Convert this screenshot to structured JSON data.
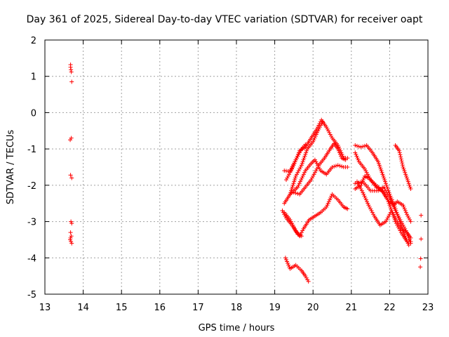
{
  "chart_data": {
    "type": "scatter",
    "title": "Day 361 of 2025, Sidereal Day-to-day VTEC variation (SDTVAR) for receiver oapt",
    "xlabel": "GPS time / hours",
    "ylabel": "SDTVAR / TECUs",
    "xlim": [
      13,
      23
    ],
    "ylim": [
      -5,
      2
    ],
    "xticks": [
      13,
      14,
      15,
      16,
      17,
      18,
      19,
      20,
      21,
      22,
      23
    ],
    "yticks": [
      -5,
      -4,
      -3,
      -2,
      -1,
      0,
      1,
      2
    ],
    "xtick_labels": [
      "13",
      "14",
      "15",
      "16",
      "17",
      "18",
      "19",
      "20",
      "21",
      "22",
      "23"
    ],
    "ytick_labels": [
      "-5",
      "-4",
      "-3",
      "-2",
      "-1",
      "0",
      "1",
      "2"
    ],
    "grid": true,
    "marker": "+",
    "color": "#ff0000",
    "points": [
      [
        13.67,
        1.32
      ],
      [
        13.67,
        1.25
      ],
      [
        13.68,
        1.18
      ],
      [
        13.69,
        1.12
      ],
      [
        13.7,
        0.85
      ],
      [
        13.66,
        -0.75
      ],
      [
        13.69,
        -0.7
      ],
      [
        13.67,
        -1.72
      ],
      [
        13.7,
        -1.8
      ],
      [
        13.68,
        -3.0
      ],
      [
        13.7,
        -3.05
      ],
      [
        13.67,
        -3.3
      ],
      [
        13.69,
        -3.4
      ],
      [
        13.66,
        -3.5
      ],
      [
        13.68,
        -3.55
      ],
      [
        13.7,
        -3.6
      ],
      [
        13.67,
        -3.45
      ],
      [
        22.82,
        -2.83
      ],
      [
        22.82,
        -3.48
      ],
      [
        22.81,
        -4.02
      ],
      [
        22.8,
        -4.25
      ]
    ],
    "segments": [
      [
        [
          19.25,
          -1.6
        ],
        [
          19.4,
          -1.62
        ],
        [
          19.55,
          -1.3
        ],
        [
          19.7,
          -1.0
        ],
        [
          19.8,
          -0.88
        ]
      ],
      [
        [
          19.3,
          -1.85
        ],
        [
          19.45,
          -1.55
        ],
        [
          19.65,
          -1.05
        ],
        [
          19.8,
          -0.95
        ],
        [
          19.95,
          -0.7
        ],
        [
          20.1,
          -0.45
        ],
        [
          20.22,
          -0.2
        ],
        [
          20.35,
          -0.4
        ],
        [
          20.5,
          -0.7
        ],
        [
          20.65,
          -0.9
        ],
        [
          20.8,
          -1.25
        ],
        [
          20.9,
          -1.25
        ]
      ],
      [
        [
          19.25,
          -2.5
        ],
        [
          19.4,
          -2.25
        ],
        [
          19.55,
          -1.75
        ],
        [
          19.7,
          -1.45
        ],
        [
          19.85,
          -1.0
        ],
        [
          20.0,
          -0.8
        ],
        [
          20.15,
          -0.45
        ],
        [
          20.25,
          -0.25
        ]
      ],
      [
        [
          19.4,
          -2.25
        ],
        [
          19.6,
          -2.05
        ],
        [
          19.8,
          -1.6
        ],
        [
          19.95,
          -1.4
        ],
        [
          20.05,
          -1.3
        ],
        [
          20.2,
          -1.6
        ],
        [
          20.35,
          -1.7
        ],
        [
          20.5,
          -1.5
        ],
        [
          20.65,
          -1.45
        ],
        [
          20.8,
          -1.5
        ],
        [
          20.9,
          -1.5
        ]
      ],
      [
        [
          19.2,
          -2.7
        ],
        [
          19.3,
          -2.9
        ],
        [
          19.45,
          -3.1
        ],
        [
          19.6,
          -3.35
        ],
        [
          19.7,
          -3.4
        ]
      ],
      [
        [
          19.25,
          -2.75
        ],
        [
          19.4,
          -2.95
        ],
        [
          19.55,
          -3.25
        ],
        [
          19.65,
          -3.4
        ],
        [
          19.75,
          -3.2
        ],
        [
          19.9,
          -2.95
        ],
        [
          20.05,
          -2.85
        ],
        [
          20.2,
          -2.75
        ],
        [
          20.35,
          -2.6
        ],
        [
          20.5,
          -2.25
        ],
        [
          20.65,
          -2.4
        ],
        [
          20.8,
          -2.6
        ],
        [
          20.9,
          -2.65
        ]
      ],
      [
        [
          19.5,
          -2.2
        ],
        [
          19.65,
          -2.25
        ],
        [
          19.8,
          -2.05
        ],
        [
          19.95,
          -1.85
        ],
        [
          20.05,
          -1.65
        ],
        [
          20.15,
          -1.45
        ],
        [
          20.3,
          -1.25
        ],
        [
          20.45,
          -1.0
        ],
        [
          20.55,
          -0.85
        ],
        [
          20.65,
          -1.0
        ],
        [
          20.75,
          -1.25
        ],
        [
          20.85,
          -1.3
        ]
      ],
      [
        [
          19.28,
          -4.0
        ],
        [
          19.4,
          -4.3
        ],
        [
          19.55,
          -4.2
        ],
        [
          19.7,
          -4.35
        ],
        [
          19.8,
          -4.5
        ],
        [
          19.88,
          -4.65
        ]
      ],
      [
        [
          21.1,
          -0.9
        ],
        [
          21.25,
          -0.95
        ],
        [
          21.4,
          -0.9
        ],
        [
          21.55,
          -1.1
        ],
        [
          21.7,
          -1.35
        ],
        [
          21.8,
          -1.65
        ],
        [
          21.9,
          -1.95
        ],
        [
          22.0,
          -2.25
        ],
        [
          22.1,
          -2.5
        ],
        [
          22.2,
          -2.8
        ],
        [
          22.3,
          -3.1
        ],
        [
          22.4,
          -3.4
        ],
        [
          22.5,
          -3.65
        ]
      ],
      [
        [
          21.15,
          -1.9
        ],
        [
          21.3,
          -2.2
        ],
        [
          21.45,
          -2.55
        ],
        [
          21.6,
          -2.85
        ],
        [
          21.75,
          -3.1
        ],
        [
          21.9,
          -3.0
        ],
        [
          22.05,
          -2.7
        ],
        [
          22.15,
          -2.9
        ],
        [
          22.3,
          -3.2
        ],
        [
          22.45,
          -3.3
        ],
        [
          22.55,
          -3.45
        ]
      ],
      [
        [
          21.1,
          -1.95
        ],
        [
          21.3,
          -1.9
        ],
        [
          21.5,
          -2.15
        ],
        [
          21.7,
          -2.15
        ],
        [
          21.85,
          -2.05
        ],
        [
          22.0,
          -2.35
        ],
        [
          22.15,
          -2.7
        ],
        [
          22.3,
          -3.0
        ],
        [
          22.45,
          -3.3
        ],
        [
          22.55,
          -3.6
        ]
      ],
      [
        [
          21.1,
          -2.1
        ],
        [
          21.25,
          -2.0
        ],
        [
          21.35,
          -1.75
        ],
        [
          21.45,
          -1.8
        ],
        [
          21.6,
          -1.95
        ],
        [
          21.75,
          -2.1
        ],
        [
          21.85,
          -2.2
        ],
        [
          21.95,
          -2.4
        ],
        [
          22.1,
          -2.55
        ],
        [
          22.2,
          -2.45
        ],
        [
          22.35,
          -2.55
        ],
        [
          22.45,
          -2.8
        ],
        [
          22.55,
          -3.0
        ]
      ],
      [
        [
          21.1,
          -1.1
        ],
        [
          21.2,
          -1.35
        ],
        [
          21.35,
          -1.55
        ],
        [
          21.5,
          -1.85
        ],
        [
          21.65,
          -2.05
        ],
        [
          21.8,
          -2.15
        ],
        [
          21.95,
          -2.4
        ],
        [
          22.05,
          -2.7
        ],
        [
          22.15,
          -3.0
        ],
        [
          22.3,
          -3.3
        ],
        [
          22.45,
          -3.55
        ],
        [
          22.55,
          -3.55
        ]
      ],
      [
        [
          22.15,
          -0.9
        ],
        [
          22.25,
          -1.05
        ],
        [
          22.35,
          -1.5
        ],
        [
          22.45,
          -1.8
        ],
        [
          22.55,
          -2.1
        ]
      ]
    ]
  }
}
